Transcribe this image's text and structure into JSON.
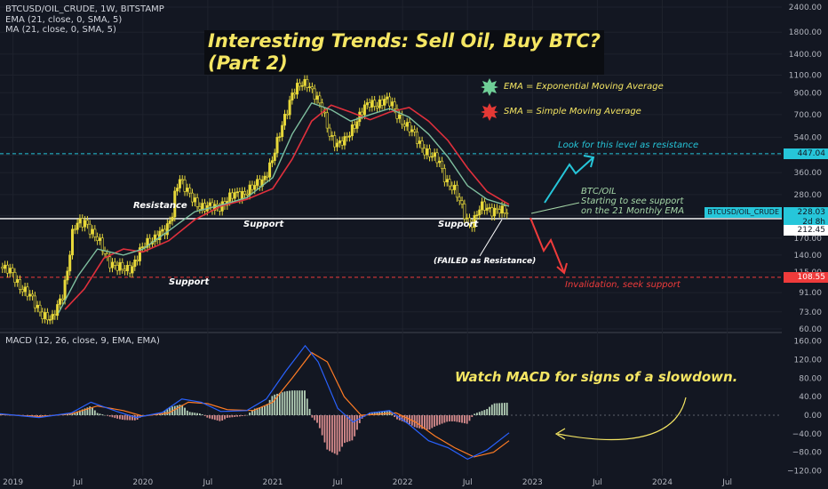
{
  "header": {
    "symbol_line": "BTCUSD/OIL_CRUDE, 1W, BITSTAMP",
    "ema_line": "EMA (21, close, 0, SMA, 5)",
    "ma_line": "MA (21, close, 0, SMA, 5)",
    "macd_line": "MACD (12, 26, close, 9, EMA, EMA)"
  },
  "title": {
    "line1": "Interesting Trends: Sell Oil, Buy BTC?",
    "line2": "(Part 2)"
  },
  "legend_boxes": {
    "ema": "EMA = Exponential Moving Average",
    "sma": "SMA = Simple Moving Average"
  },
  "annotations": {
    "resistance": "Resistance",
    "support_1": "Support",
    "support_2": "Support",
    "support_3": "Support",
    "failed": "(FAILED as Resistance)",
    "look_level": "Look for this level as resistance",
    "btcoil_1": "BTC/OIL",
    "btcoil_2": "Starting to see support",
    "btcoil_3": "on the 21 Monthly EMA",
    "invalidation": "Invalidation, seek support",
    "macd_note": "Watch MACD for signs of a slowdown."
  },
  "price_tags": {
    "resistance_level": "447.04",
    "current_symbol": "BTCUSD/OIL_CRUDE",
    "current_price": "228.03",
    "countdown": "2d 8h",
    "support_level": "212.45",
    "invalidation_level": "108.55"
  },
  "colors": {
    "background": "#131722",
    "candle": "#e8d93a",
    "ema": "#7fbf9f",
    "sma": "#e0303c",
    "macd_line": "#2962ff",
    "signal_line": "#ff7c24",
    "hist_pos": "#c8e6c9",
    "hist_neg": "#ef9a9a",
    "cyan": "#26c6da",
    "red": "#ef3b3b",
    "annotation_yellow": "#f5e663"
  },
  "chart_data": {
    "type": "candlestick",
    "x_axis_labels": [
      "2019",
      "Jul",
      "2020",
      "Jul",
      "2021",
      "Jul",
      "2022",
      "Jul",
      "2023",
      "Jul",
      "2024",
      "Jul"
    ],
    "y_axis_price": {
      "scale": "log",
      "ticks": [
        "2400.00",
        "1800.00",
        "1400.00",
        "1100.00",
        "900.00",
        "700.00",
        "540.00",
        "440.00",
        "360.00",
        "280.00",
        "220.00",
        "170.00",
        "140.00",
        "115.00",
        "91.00",
        "73.00",
        "60.00"
      ]
    },
    "y_axis_macd": {
      "ticks": [
        "160.00",
        "120.00",
        "80.00",
        "40.00",
        "0.00",
        "−40.00",
        "−80.00",
        "−120.00"
      ]
    },
    "horizontal_levels": {
      "resistance_dashed": 447.04,
      "support_solid": 212.45,
      "invalidation_dashed": 108.55
    },
    "price_path": [
      [
        2018.9,
        122
      ],
      [
        2019.0,
        112
      ],
      [
        2019.05,
        100
      ],
      [
        2019.12,
        88
      ],
      [
        2019.18,
        78
      ],
      [
        2019.23,
        72
      ],
      [
        2019.3,
        65
      ],
      [
        2019.35,
        80
      ],
      [
        2019.38,
        90
      ],
      [
        2019.42,
        120
      ],
      [
        2019.46,
        180
      ],
      [
        2019.5,
        200
      ],
      [
        2019.56,
        210
      ],
      [
        2019.62,
        175
      ],
      [
        2019.68,
        155
      ],
      [
        2019.73,
        135
      ],
      [
        2019.8,
        120
      ],
      [
        2019.86,
        118
      ],
      [
        2019.92,
        125
      ],
      [
        2019.98,
        145
      ],
      [
        2020.05,
        165
      ],
      [
        2020.12,
        180
      ],
      [
        2020.18,
        180
      ],
      [
        2020.2,
        200
      ],
      [
        2020.23,
        230
      ],
      [
        2020.25,
        300
      ],
      [
        2020.28,
        345
      ],
      [
        2020.32,
        300
      ],
      [
        2020.36,
        275
      ],
      [
        2020.42,
        255
      ],
      [
        2020.48,
        240
      ],
      [
        2020.55,
        240
      ],
      [
        2020.62,
        255
      ],
      [
        2020.7,
        275
      ],
      [
        2020.78,
        290
      ],
      [
        2020.85,
        300
      ],
      [
        2020.92,
        330
      ],
      [
        2021.0,
        420
      ],
      [
        2021.05,
        540
      ],
      [
        2021.1,
        720
      ],
      [
        2021.15,
        900
      ],
      [
        2021.2,
        950
      ],
      [
        2021.27,
        1020
      ],
      [
        2021.32,
        900
      ],
      [
        2021.38,
        730
      ],
      [
        2021.44,
        560
      ],
      [
        2021.5,
        500
      ],
      [
        2021.56,
        510
      ],
      [
        2021.62,
        620
      ],
      [
        2021.68,
        720
      ],
      [
        2021.74,
        780
      ],
      [
        2021.8,
        800
      ],
      [
        2021.86,
        830
      ],
      [
        2021.92,
        770
      ],
      [
        2021.98,
        680
      ],
      [
        2022.04,
        600
      ],
      [
        2022.1,
        540
      ],
      [
        2022.16,
        480
      ],
      [
        2022.22,
        430
      ],
      [
        2022.28,
        410
      ],
      [
        2022.34,
        330
      ],
      [
        2022.4,
        290
      ],
      [
        2022.46,
        240
      ],
      [
        2022.52,
        200
      ],
      [
        2022.56,
        210
      ],
      [
        2022.6,
        240
      ],
      [
        2022.64,
        245
      ],
      [
        2022.7,
        235
      ],
      [
        2022.76,
        228
      ],
      [
        2022.82,
        228
      ]
    ],
    "ema_path": [
      [
        2019.35,
        72
      ],
      [
        2019.5,
        110
      ],
      [
        2019.65,
        150
      ],
      [
        2019.85,
        140
      ],
      [
        2020.0,
        150
      ],
      [
        2020.2,
        185
      ],
      [
        2020.4,
        230
      ],
      [
        2020.6,
        248
      ],
      [
        2020.8,
        270
      ],
      [
        2021.0,
        340
      ],
      [
        2021.15,
        560
      ],
      [
        2021.3,
        800
      ],
      [
        2021.45,
        740
      ],
      [
        2021.6,
        650
      ],
      [
        2021.75,
        700
      ],
      [
        2021.9,
        750
      ],
      [
        2022.05,
        680
      ],
      [
        2022.2,
        560
      ],
      [
        2022.35,
        430
      ],
      [
        2022.5,
        310
      ],
      [
        2022.65,
        265
      ],
      [
        2022.82,
        245
      ]
    ],
    "sma_path": [
      [
        2019.4,
        75
      ],
      [
        2019.55,
        95
      ],
      [
        2019.7,
        135
      ],
      [
        2019.85,
        150
      ],
      [
        2020.0,
        145
      ],
      [
        2020.2,
        165
      ],
      [
        2020.4,
        210
      ],
      [
        2020.6,
        245
      ],
      [
        2020.8,
        265
      ],
      [
        2021.0,
        300
      ],
      [
        2021.15,
        420
      ],
      [
        2021.3,
        650
      ],
      [
        2021.45,
        780
      ],
      [
        2021.6,
        720
      ],
      [
        2021.75,
        660
      ],
      [
        2021.9,
        720
      ],
      [
        2022.05,
        760
      ],
      [
        2022.2,
        650
      ],
      [
        2022.35,
        520
      ],
      [
        2022.5,
        380
      ],
      [
        2022.65,
        290
      ],
      [
        2022.82,
        250
      ]
    ],
    "macd_path": [
      [
        2018.9,
        3
      ],
      [
        2019.2,
        -5
      ],
      [
        2019.45,
        5
      ],
      [
        2019.6,
        28
      ],
      [
        2019.8,
        8
      ],
      [
        2019.95,
        -5
      ],
      [
        2020.15,
        6
      ],
      [
        2020.3,
        35
      ],
      [
        2020.45,
        28
      ],
      [
        2020.6,
        8
      ],
      [
        2020.8,
        10
      ],
      [
        2020.95,
        35
      ],
      [
        2021.1,
        95
      ],
      [
        2021.25,
        150
      ],
      [
        2021.35,
        115
      ],
      [
        2021.5,
        15
      ],
      [
        2021.62,
        -15
      ],
      [
        2021.75,
        5
      ],
      [
        2021.9,
        10
      ],
      [
        2022.05,
        -20
      ],
      [
        2022.2,
        -55
      ],
      [
        2022.35,
        -70
      ],
      [
        2022.5,
        -95
      ],
      [
        2022.65,
        -75
      ],
      [
        2022.82,
        -38
      ]
    ],
    "signal_path": [
      [
        2018.9,
        2
      ],
      [
        2019.2,
        -3
      ],
      [
        2019.45,
        3
      ],
      [
        2019.65,
        20
      ],
      [
        2019.85,
        10
      ],
      [
        2020.0,
        -2
      ],
      [
        2020.2,
        5
      ],
      [
        2020.35,
        28
      ],
      [
        2020.5,
        25
      ],
      [
        2020.65,
        12
      ],
      [
        2020.85,
        10
      ],
      [
        2021.0,
        28
      ],
      [
        2021.15,
        80
      ],
      [
        2021.3,
        135
      ],
      [
        2021.42,
        115
      ],
      [
        2021.55,
        40
      ],
      [
        2021.68,
        0
      ],
      [
        2021.8,
        2
      ],
      [
        2021.95,
        5
      ],
      [
        2022.1,
        -15
      ],
      [
        2022.25,
        -45
      ],
      [
        2022.4,
        -70
      ],
      [
        2022.55,
        -90
      ],
      [
        2022.7,
        -80
      ],
      [
        2022.82,
        -55
      ]
    ]
  }
}
